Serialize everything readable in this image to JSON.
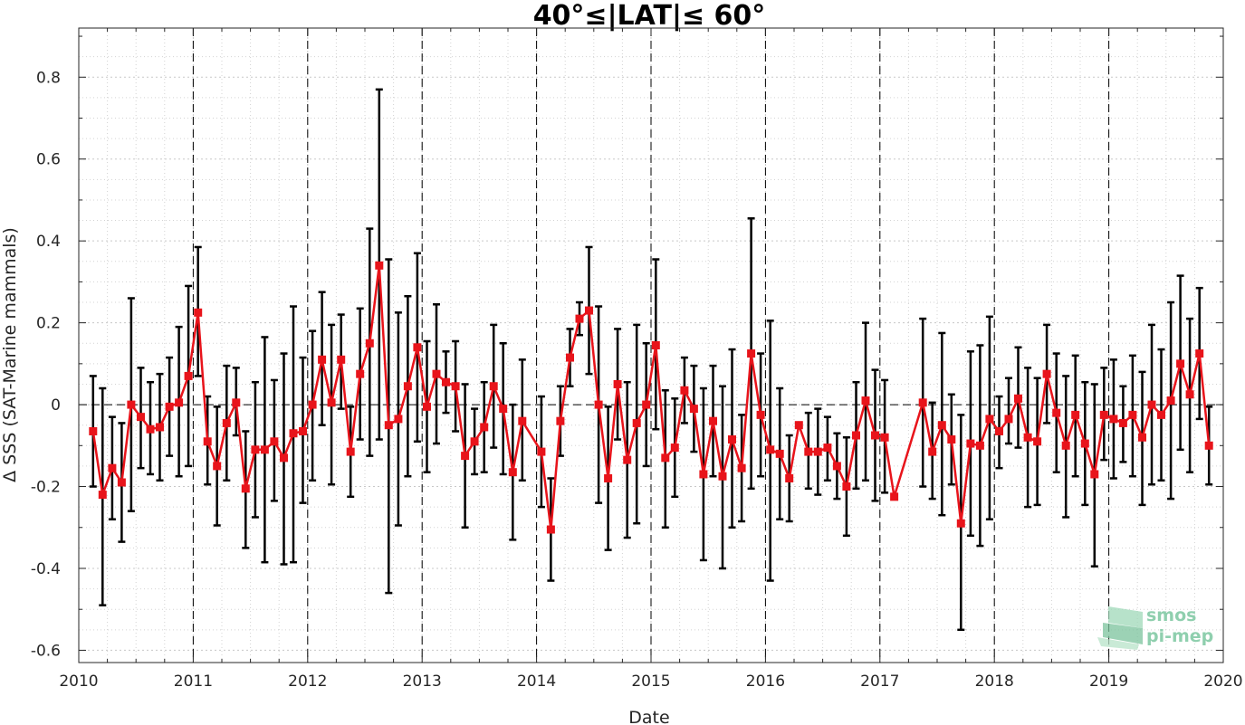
{
  "chart_data": {
    "type": "line",
    "title": "40°≤|LAT|≤ 60°",
    "xlabel": "Date",
    "ylabel": "Δ SSS (SAT-Marine mammals)",
    "xlim": [
      2010,
      2020
    ],
    "ylim": [
      -0.63,
      0.92
    ],
    "x_ticks": [
      "2010",
      "2011",
      "2012",
      "2013",
      "2014",
      "2015",
      "2016",
      "2017",
      "2018",
      "2019",
      "2020"
    ],
    "y_ticks": [
      {
        "value": 0.8,
        "label": "0.8"
      },
      {
        "value": 0.6,
        "label": "0.6"
      },
      {
        "value": 0.4,
        "label": "0.4"
      },
      {
        "value": 0.2,
        "label": "0.2"
      },
      {
        "value": 0,
        "label": "0"
      },
      {
        "value": -0.2,
        "label": "-0.2"
      },
      {
        "value": -0.4,
        "label": "-0.4"
      },
      {
        "value": -0.6,
        "label": "-0.6"
      }
    ],
    "grid": true,
    "year_boundaries": [
      2011,
      2012,
      2013,
      2014,
      2015,
      2016,
      2017,
      2018,
      2019
    ],
    "series": [
      {
        "color": "#e8141b",
        "errorbar_color": "#000000",
        "points": [
          {
            "x": 2010.125,
            "y": -0.065,
            "lo": -0.2,
            "hi": 0.07
          },
          {
            "x": 2010.208,
            "y": -0.22,
            "lo": -0.49,
            "hi": 0.04
          },
          {
            "x": 2010.292,
            "y": -0.155,
            "lo": -0.28,
            "hi": -0.03
          },
          {
            "x": 2010.375,
            "y": -0.19,
            "lo": -0.335,
            "hi": -0.045
          },
          {
            "x": 2010.458,
            "y": 0.0,
            "lo": -0.26,
            "hi": 0.26
          },
          {
            "x": 2010.542,
            "y": -0.03,
            "lo": -0.155,
            "hi": 0.09
          },
          {
            "x": 2010.625,
            "y": -0.06,
            "lo": -0.17,
            "hi": 0.055
          },
          {
            "x": 2010.708,
            "y": -0.055,
            "lo": -0.185,
            "hi": 0.075
          },
          {
            "x": 2010.792,
            "y": -0.005,
            "lo": -0.125,
            "hi": 0.115
          },
          {
            "x": 2010.875,
            "y": 0.005,
            "lo": -0.175,
            "hi": 0.19
          },
          {
            "x": 2010.958,
            "y": 0.07,
            "lo": -0.15,
            "hi": 0.29
          },
          {
            "x": 2011.042,
            "y": 0.225,
            "lo": 0.07,
            "hi": 0.385
          },
          {
            "x": 2011.125,
            "y": -0.09,
            "lo": -0.195,
            "hi": 0.02
          },
          {
            "x": 2011.208,
            "y": -0.15,
            "lo": -0.295,
            "hi": -0.005
          },
          {
            "x": 2011.292,
            "y": -0.045,
            "lo": -0.185,
            "hi": 0.095
          },
          {
            "x": 2011.375,
            "y": 0.005,
            "lo": -0.075,
            "hi": 0.09
          },
          {
            "x": 2011.458,
            "y": -0.205,
            "lo": -0.35,
            "hi": -0.065
          },
          {
            "x": 2011.542,
            "y": -0.11,
            "lo": -0.275,
            "hi": 0.055
          },
          {
            "x": 2011.625,
            "y": -0.11,
            "lo": -0.385,
            "hi": 0.165
          },
          {
            "x": 2011.708,
            "y": -0.09,
            "lo": -0.235,
            "hi": 0.06
          },
          {
            "x": 2011.792,
            "y": -0.13,
            "lo": -0.39,
            "hi": 0.125
          },
          {
            "x": 2011.875,
            "y": -0.07,
            "lo": -0.385,
            "hi": 0.24
          },
          {
            "x": 2011.958,
            "y": -0.065,
            "lo": -0.24,
            "hi": 0.115
          },
          {
            "x": 2012.042,
            "y": 0.0,
            "lo": -0.185,
            "hi": 0.18
          },
          {
            "x": 2012.125,
            "y": 0.11,
            "lo": -0.05,
            "hi": 0.275
          },
          {
            "x": 2012.208,
            "y": 0.005,
            "lo": -0.195,
            "hi": 0.195
          },
          {
            "x": 2012.292,
            "y": 0.11,
            "lo": -0.01,
            "hi": 0.22
          },
          {
            "x": 2012.375,
            "y": -0.115,
            "lo": -0.225,
            "hi": -0.005
          },
          {
            "x": 2012.458,
            "y": 0.075,
            "lo": -0.085,
            "hi": 0.235
          },
          {
            "x": 2012.542,
            "y": 0.15,
            "lo": -0.125,
            "hi": 0.43
          },
          {
            "x": 2012.625,
            "y": 0.34,
            "lo": -0.085,
            "hi": 0.77
          },
          {
            "x": 2012.708,
            "y": -0.05,
            "lo": -0.46,
            "hi": 0.355
          },
          {
            "x": 2012.792,
            "y": -0.035,
            "lo": -0.295,
            "hi": 0.225
          },
          {
            "x": 2012.875,
            "y": 0.045,
            "lo": -0.175,
            "hi": 0.265
          },
          {
            "x": 2012.958,
            "y": 0.14,
            "lo": -0.09,
            "hi": 0.37
          },
          {
            "x": 2013.042,
            "y": -0.005,
            "lo": -0.165,
            "hi": 0.155
          },
          {
            "x": 2013.125,
            "y": 0.075,
            "lo": -0.095,
            "hi": 0.245
          },
          {
            "x": 2013.208,
            "y": 0.055,
            "lo": -0.02,
            "hi": 0.13
          },
          {
            "x": 2013.292,
            "y": 0.045,
            "lo": -0.065,
            "hi": 0.155
          },
          {
            "x": 2013.375,
            "y": -0.125,
            "lo": -0.3,
            "hi": 0.05
          },
          {
            "x": 2013.458,
            "y": -0.09,
            "lo": -0.17,
            "hi": -0.01
          },
          {
            "x": 2013.542,
            "y": -0.055,
            "lo": -0.165,
            "hi": 0.055
          },
          {
            "x": 2013.625,
            "y": 0.045,
            "lo": -0.105,
            "hi": 0.195
          },
          {
            "x": 2013.708,
            "y": -0.01,
            "lo": -0.17,
            "hi": 0.15
          },
          {
            "x": 2013.792,
            "y": -0.165,
            "lo": -0.33,
            "hi": 0.0
          },
          {
            "x": 2013.875,
            "y": -0.04,
            "lo": -0.185,
            "hi": 0.11
          },
          {
            "x": 2014.042,
            "y": -0.115,
            "lo": -0.25,
            "hi": 0.02
          },
          {
            "x": 2014.125,
            "y": -0.305,
            "lo": -0.43,
            "hi": -0.18
          },
          {
            "x": 2014.208,
            "y": -0.04,
            "lo": -0.125,
            "hi": 0.045
          },
          {
            "x": 2014.292,
            "y": 0.115,
            "lo": 0.045,
            "hi": 0.185
          },
          {
            "x": 2014.375,
            "y": 0.21,
            "lo": 0.17,
            "hi": 0.25
          },
          {
            "x": 2014.458,
            "y": 0.23,
            "lo": 0.075,
            "hi": 0.385
          },
          {
            "x": 2014.542,
            "y": 0.0,
            "lo": -0.24,
            "hi": 0.24
          },
          {
            "x": 2014.625,
            "y": -0.18,
            "lo": -0.355,
            "hi": -0.005
          },
          {
            "x": 2014.708,
            "y": 0.05,
            "lo": -0.085,
            "hi": 0.185
          },
          {
            "x": 2014.792,
            "y": -0.135,
            "lo": -0.325,
            "hi": 0.055
          },
          {
            "x": 2014.875,
            "y": -0.045,
            "lo": -0.29,
            "hi": 0.195
          },
          {
            "x": 2014.958,
            "y": 0.0,
            "lo": -0.15,
            "hi": 0.15
          },
          {
            "x": 2015.042,
            "y": 0.145,
            "lo": -0.06,
            "hi": 0.355
          },
          {
            "x": 2015.125,
            "y": -0.13,
            "lo": -0.3,
            "hi": 0.035
          },
          {
            "x": 2015.208,
            "y": -0.105,
            "lo": -0.225,
            "hi": 0.015
          },
          {
            "x": 2015.292,
            "y": 0.035,
            "lo": -0.045,
            "hi": 0.115
          },
          {
            "x": 2015.375,
            "y": -0.01,
            "lo": -0.115,
            "hi": 0.095
          },
          {
            "x": 2015.458,
            "y": -0.17,
            "lo": -0.38,
            "hi": 0.04
          },
          {
            "x": 2015.542,
            "y": -0.04,
            "lo": -0.175,
            "hi": 0.095
          },
          {
            "x": 2015.625,
            "y": -0.175,
            "lo": -0.4,
            "hi": 0.045
          },
          {
            "x": 2015.708,
            "y": -0.085,
            "lo": -0.3,
            "hi": 0.135
          },
          {
            "x": 2015.792,
            "y": -0.155,
            "lo": -0.285,
            "hi": -0.025
          },
          {
            "x": 2015.875,
            "y": 0.125,
            "lo": -0.205,
            "hi": 0.455
          },
          {
            "x": 2015.958,
            "y": -0.025,
            "lo": -0.175,
            "hi": 0.125
          },
          {
            "x": 2016.042,
            "y": -0.11,
            "lo": -0.43,
            "hi": 0.205
          },
          {
            "x": 2016.125,
            "y": -0.12,
            "lo": -0.28,
            "hi": 0.04
          },
          {
            "x": 2016.208,
            "y": -0.18,
            "lo": -0.285,
            "hi": -0.075
          },
          {
            "x": 2016.292,
            "y": -0.05,
            "lo": -0.055,
            "hi": -0.045
          },
          {
            "x": 2016.375,
            "y": -0.115,
            "lo": -0.205,
            "hi": -0.02
          },
          {
            "x": 2016.458,
            "y": -0.115,
            "lo": -0.22,
            "hi": -0.01
          },
          {
            "x": 2016.542,
            "y": -0.105,
            "lo": -0.185,
            "hi": -0.03
          },
          {
            "x": 2016.625,
            "y": -0.15,
            "lo": -0.23,
            "hi": -0.07
          },
          {
            "x": 2016.708,
            "y": -0.2,
            "lo": -0.32,
            "hi": -0.08
          },
          {
            "x": 2016.792,
            "y": -0.075,
            "lo": -0.205,
            "hi": 0.055
          },
          {
            "x": 2016.875,
            "y": 0.01,
            "lo": -0.185,
            "hi": 0.2
          },
          {
            "x": 2016.958,
            "y": -0.075,
            "lo": -0.235,
            "hi": 0.085
          },
          {
            "x": 2017.042,
            "y": -0.08,
            "lo": -0.215,
            "hi": 0.06
          },
          {
            "x": 2017.125,
            "y": -0.225,
            "lo": -0.23,
            "hi": -0.22
          },
          {
            "x": 2017.375,
            "y": 0.005,
            "lo": -0.2,
            "hi": 0.21
          },
          {
            "x": 2017.458,
            "y": -0.115,
            "lo": -0.23,
            "hi": 0.005
          },
          {
            "x": 2017.542,
            "y": -0.05,
            "lo": -0.27,
            "hi": 0.175
          },
          {
            "x": 2017.625,
            "y": -0.085,
            "lo": -0.195,
            "hi": 0.025
          },
          {
            "x": 2017.708,
            "y": -0.29,
            "lo": -0.55,
            "hi": -0.025
          },
          {
            "x": 2017.792,
            "y": -0.095,
            "lo": -0.32,
            "hi": 0.13
          },
          {
            "x": 2017.875,
            "y": -0.1,
            "lo": -0.345,
            "hi": 0.145
          },
          {
            "x": 2017.958,
            "y": -0.035,
            "lo": -0.28,
            "hi": 0.215
          },
          {
            "x": 2018.042,
            "y": -0.065,
            "lo": -0.155,
            "hi": 0.02
          },
          {
            "x": 2018.125,
            "y": -0.035,
            "lo": -0.095,
            "hi": 0.065
          },
          {
            "x": 2018.208,
            "y": 0.015,
            "lo": -0.105,
            "hi": 0.14
          },
          {
            "x": 2018.292,
            "y": -0.08,
            "lo": -0.25,
            "hi": 0.09
          },
          {
            "x": 2018.375,
            "y": -0.09,
            "lo": -0.245,
            "hi": 0.065
          },
          {
            "x": 2018.458,
            "y": 0.075,
            "lo": -0.045,
            "hi": 0.195
          },
          {
            "x": 2018.542,
            "y": -0.02,
            "lo": -0.165,
            "hi": 0.125
          },
          {
            "x": 2018.625,
            "y": -0.1,
            "lo": -0.275,
            "hi": 0.07
          },
          {
            "x": 2018.708,
            "y": -0.025,
            "lo": -0.175,
            "hi": 0.12
          },
          {
            "x": 2018.792,
            "y": -0.095,
            "lo": -0.245,
            "hi": 0.055
          },
          {
            "x": 2018.875,
            "y": -0.17,
            "lo": -0.395,
            "hi": 0.05
          },
          {
            "x": 2018.958,
            "y": -0.025,
            "lo": -0.135,
            "hi": 0.09
          },
          {
            "x": 2019.042,
            "y": -0.035,
            "lo": -0.18,
            "hi": 0.11
          },
          {
            "x": 2019.125,
            "y": -0.045,
            "lo": -0.14,
            "hi": 0.045
          },
          {
            "x": 2019.208,
            "y": -0.025,
            "lo": -0.175,
            "hi": 0.12
          },
          {
            "x": 2019.292,
            "y": -0.08,
            "lo": -0.245,
            "hi": 0.08
          },
          {
            "x": 2019.375,
            "y": 0.0,
            "lo": -0.195,
            "hi": 0.195
          },
          {
            "x": 2019.458,
            "y": -0.025,
            "lo": -0.185,
            "hi": 0.135
          },
          {
            "x": 2019.542,
            "y": 0.01,
            "lo": -0.23,
            "hi": 0.25
          },
          {
            "x": 2019.625,
            "y": 0.1,
            "lo": -0.11,
            "hi": 0.315
          },
          {
            "x": 2019.708,
            "y": 0.025,
            "lo": -0.165,
            "hi": 0.21
          },
          {
            "x": 2019.792,
            "y": 0.125,
            "lo": -0.035,
            "hi": 0.285
          },
          {
            "x": 2019.875,
            "y": -0.1,
            "lo": -0.195,
            "hi": -0.005
          }
        ]
      }
    ]
  },
  "watermark": {
    "line1": "smos",
    "line2": "pi-mep",
    "color": "#8fcfae"
  }
}
